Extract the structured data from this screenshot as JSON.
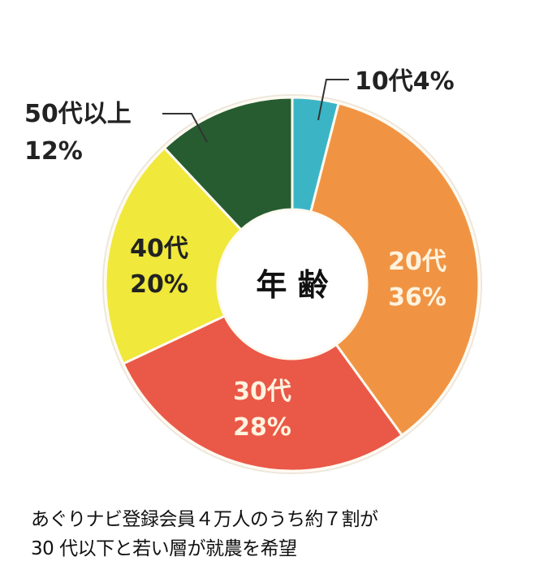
{
  "chart_data": {
    "type": "pie",
    "donut": true,
    "center_label": "年齢",
    "start": "top",
    "direction": "clockwise",
    "slices": [
      {
        "label": "10代",
        "value": 4,
        "value_label": "4%",
        "color": "#3bb5c6",
        "text_color": "#222222"
      },
      {
        "label": "20代",
        "value": 36,
        "value_label": "36%",
        "color": "#f09444",
        "text_color": "#fff3de"
      },
      {
        "label": "30代",
        "value": 28,
        "value_label": "28%",
        "color": "#ea5848",
        "text_color": "#fff3de"
      },
      {
        "label": "40代",
        "value": 20,
        "value_label": "20%",
        "color": "#f0e83a",
        "text_color": "#222222"
      },
      {
        "label": "50代以上",
        "value": 12,
        "value_label": "12%",
        "color": "#265c30",
        "text_color": "#222222"
      }
    ]
  },
  "caption": {
    "line1": "あぐりナビ登録会員４万人のうち約７割が",
    "line2": "30 代以下と若い層が就農を希望"
  }
}
